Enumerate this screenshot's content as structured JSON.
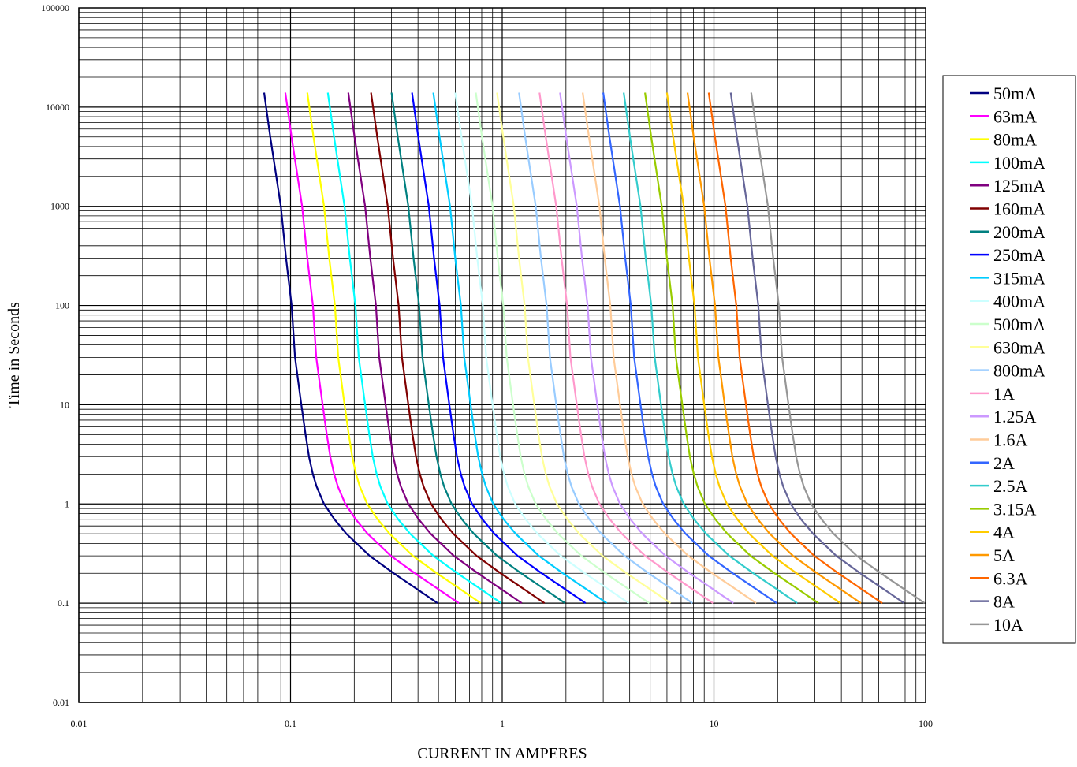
{
  "chart_data": {
    "type": "line",
    "title": "",
    "xlabel": "CURRENT IN AMPERES",
    "ylabel": "Time in Seconds",
    "x_scale": "log",
    "y_scale": "log",
    "xlim": [
      0.01,
      100
    ],
    "ylim": [
      0.01,
      100000
    ],
    "grid": true,
    "legend_position": "right",
    "x_tick_labels": [
      "0.01",
      "0.1",
      "1",
      "10",
      "100"
    ],
    "y_tick_labels": [
      "0.01",
      "0.1",
      "1",
      "10",
      "100",
      "1000",
      "10000",
      "100000"
    ],
    "base_curve_times": [
      14000,
      5000,
      1000,
      300,
      100,
      30,
      10,
      5,
      3,
      2,
      1.5,
      1,
      0.7,
      0.5,
      0.3,
      0.2,
      0.1
    ],
    "base_curve_multipliers": [
      1.0,
      1.07,
      1.2,
      1.27,
      1.35,
      1.4,
      1.5,
      1.57,
      1.63,
      1.7,
      1.77,
      1.92,
      2.15,
      2.45,
      3.15,
      4.1,
      6.6
    ],
    "series": [
      {
        "name": "50mA",
        "rating": 0.05,
        "color": "#000080"
      },
      {
        "name": "63mA",
        "rating": 0.063,
        "color": "#ff00ff"
      },
      {
        "name": "80mA",
        "rating": 0.08,
        "color": "#ffff00"
      },
      {
        "name": "100mA",
        "rating": 0.1,
        "color": "#00ffff"
      },
      {
        "name": "125mA",
        "rating": 0.125,
        "color": "#800080"
      },
      {
        "name": "160mA",
        "rating": 0.16,
        "color": "#800000"
      },
      {
        "name": "200mA",
        "rating": 0.2,
        "color": "#008080"
      },
      {
        "name": "250mA",
        "rating": 0.25,
        "color": "#0000ff"
      },
      {
        "name": "315mA",
        "rating": 0.315,
        "color": "#00ccff"
      },
      {
        "name": "400mA",
        "rating": 0.4,
        "color": "#ccffff"
      },
      {
        "name": "500mA",
        "rating": 0.5,
        "color": "#ccffcc"
      },
      {
        "name": "630mA",
        "rating": 0.63,
        "color": "#ffff99"
      },
      {
        "name": "800mA",
        "rating": 0.8,
        "color": "#99ccff"
      },
      {
        "name": "1A",
        "rating": 1.0,
        "color": "#ff99cc"
      },
      {
        "name": "1.25A",
        "rating": 1.25,
        "color": "#cc99ff"
      },
      {
        "name": "1.6A",
        "rating": 1.6,
        "color": "#ffcc99"
      },
      {
        "name": "2A",
        "rating": 2.0,
        "color": "#3366ff"
      },
      {
        "name": "2.5A",
        "rating": 2.5,
        "color": "#33cccc"
      },
      {
        "name": "3.15A",
        "rating": 3.15,
        "color": "#99cc00"
      },
      {
        "name": "4A",
        "rating": 4.0,
        "color": "#ffcc00"
      },
      {
        "name": "5A",
        "rating": 5.0,
        "color": "#ff9900"
      },
      {
        "name": "6.3A",
        "rating": 6.3,
        "color": "#ff6600"
      },
      {
        "name": "8A",
        "rating": 8.0,
        "color": "#666699"
      },
      {
        "name": "10A",
        "rating": 10.0,
        "color": "#969696"
      }
    ]
  }
}
